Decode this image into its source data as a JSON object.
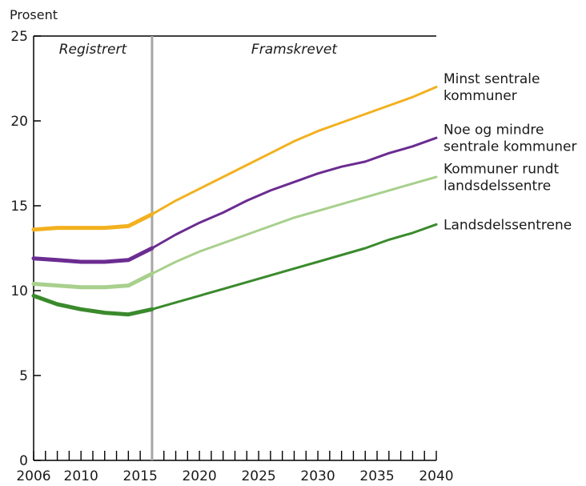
{
  "chart_data": {
    "type": "line",
    "ylabel": "Prosent",
    "ylim": [
      0,
      25
    ],
    "xlim": [
      2006,
      2040
    ],
    "y_ticks": [
      "0",
      "5",
      "10",
      "15",
      "20",
      "25"
    ],
    "x_ticks": [
      "2006",
      "2010",
      "2015",
      "2020",
      "2025",
      "2030",
      "2035",
      "2040"
    ],
    "regions": {
      "registered": "Registrert",
      "projected": "Framskrevet"
    },
    "divider_year": 2016,
    "series": [
      {
        "name": "Minst sentrale kommuner",
        "label_lines": [
          "Minst sentrale",
          "kommuner"
        ],
        "color": "#f2b11f",
        "x": [
          2006,
          2008,
          2010,
          2012,
          2014,
          2016,
          2018,
          2020,
          2022,
          2024,
          2026,
          2028,
          2030,
          2032,
          2034,
          2036,
          2038,
          2040
        ],
        "y": [
          13.6,
          13.7,
          13.7,
          13.7,
          13.8,
          14.5,
          15.3,
          16.0,
          16.7,
          17.4,
          18.1,
          18.8,
          19.4,
          19.9,
          20.4,
          20.9,
          21.4,
          22.0
        ]
      },
      {
        "name": "Noe og mindre sentrale kommuner",
        "label_lines": [
          "Noe og mindre",
          "sentrale kommuner"
        ],
        "color": "#6b2c91",
        "x": [
          2006,
          2008,
          2010,
          2012,
          2014,
          2016,
          2018,
          2020,
          2022,
          2024,
          2026,
          2028,
          2030,
          2032,
          2034,
          2036,
          2038,
          2040
        ],
        "y": [
          11.9,
          11.8,
          11.7,
          11.7,
          11.8,
          12.5,
          13.3,
          14.0,
          14.6,
          15.3,
          15.9,
          16.4,
          16.9,
          17.3,
          17.6,
          18.1,
          18.5,
          19.0
        ]
      },
      {
        "name": "Kommuner rundt landsdelssentre",
        "label_lines": [
          "Kommuner rundt",
          "landsdelssentre"
        ],
        "color": "#a8d08d",
        "x": [
          2006,
          2008,
          2010,
          2012,
          2014,
          2016,
          2018,
          2020,
          2022,
          2024,
          2026,
          2028,
          2030,
          2032,
          2034,
          2036,
          2038,
          2040
        ],
        "y": [
          10.4,
          10.3,
          10.2,
          10.2,
          10.3,
          11.0,
          11.7,
          12.3,
          12.8,
          13.3,
          13.8,
          14.3,
          14.7,
          15.1,
          15.5,
          15.9,
          16.3,
          16.7
        ]
      },
      {
        "name": "Landsdelssentrene",
        "label_lines": [
          "Landsdelssentrene"
        ],
        "color": "#3a8a2c",
        "x": [
          2006,
          2008,
          2010,
          2012,
          2014,
          2016,
          2018,
          2020,
          2022,
          2024,
          2026,
          2028,
          2030,
          2032,
          2034,
          2036,
          2038,
          2040
        ],
        "y": [
          9.7,
          9.2,
          8.9,
          8.7,
          8.6,
          8.9,
          9.3,
          9.7,
          10.1,
          10.5,
          10.9,
          11.3,
          11.7,
          12.1,
          12.5,
          13.0,
          13.4,
          13.9
        ]
      }
    ]
  }
}
